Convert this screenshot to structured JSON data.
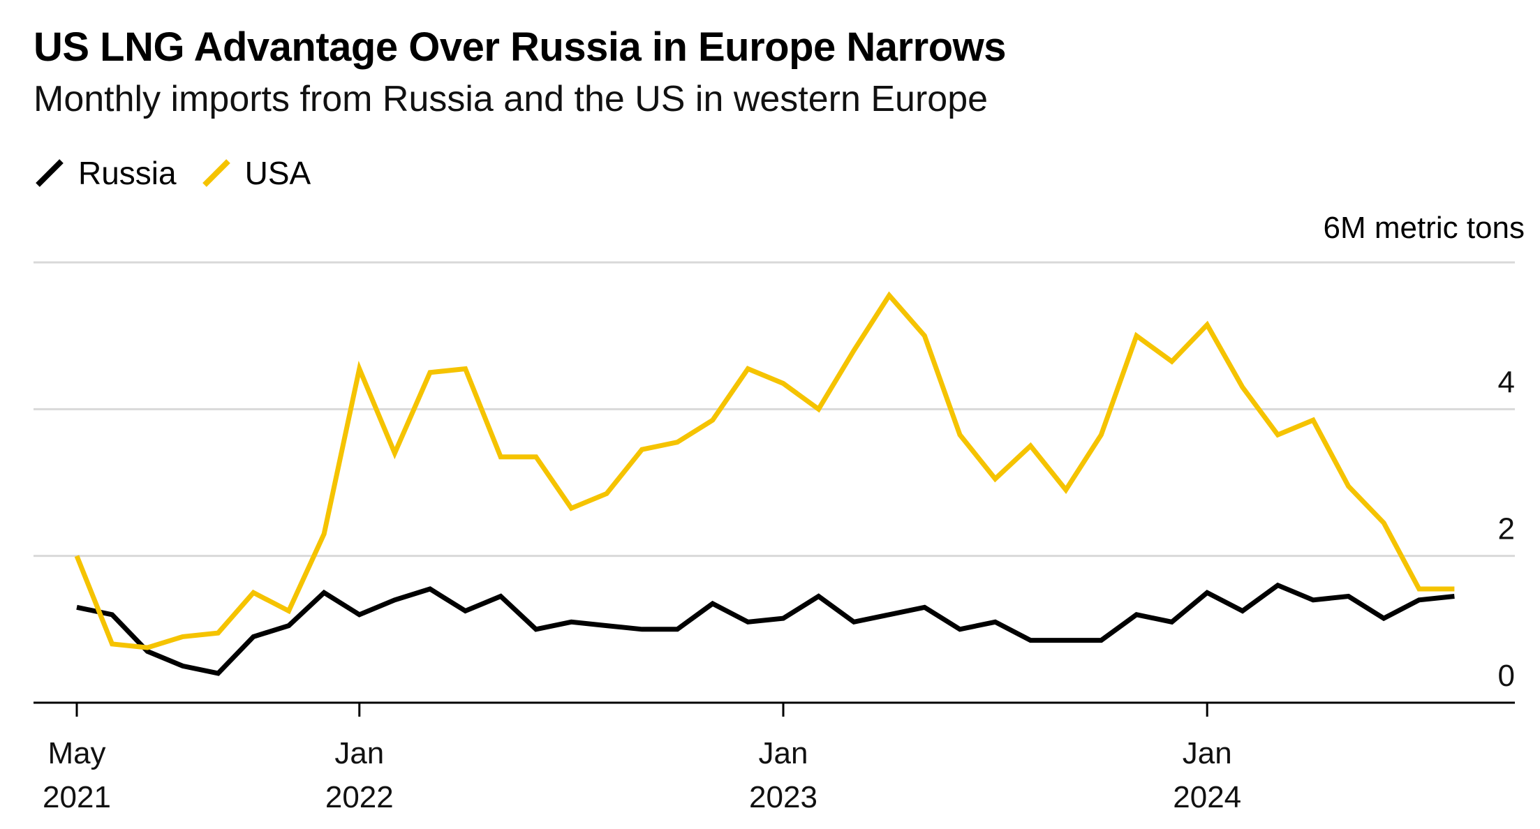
{
  "title": "US LNG Advantage Over Russia in Europe Narrows",
  "subtitle": "Monthly imports from Russia and the US in western Europe",
  "unit_label": "6M metric tons",
  "colors": {
    "russia": "#000000",
    "usa": "#F5C300",
    "grid": "#d9d9d9",
    "axis": "#000000"
  },
  "chart_data": {
    "type": "line",
    "title": "US LNG Advantage Over Russia in Europe Narrows",
    "subtitle": "Monthly imports from Russia and the US in western Europe",
    "ylabel": "6M metric tons",
    "ylim": [
      0,
      6
    ],
    "yticks": [
      0,
      2,
      4
    ],
    "y_tick_labels": [
      "0",
      "2",
      "4"
    ],
    "grid": true,
    "legend_position": "top-left",
    "x": [
      "2021-05",
      "2021-06",
      "2021-07",
      "2021-08",
      "2021-09",
      "2021-10",
      "2021-11",
      "2021-12",
      "2022-01",
      "2022-02",
      "2022-03",
      "2022-04",
      "2022-05",
      "2022-06",
      "2022-07",
      "2022-08",
      "2022-09",
      "2022-10",
      "2022-11",
      "2022-12",
      "2023-01",
      "2023-02",
      "2023-03",
      "2023-04",
      "2023-05",
      "2023-06",
      "2023-07",
      "2023-08",
      "2023-09",
      "2023-10",
      "2023-11",
      "2023-12",
      "2024-01",
      "2024-02",
      "2024-03",
      "2024-04",
      "2024-05",
      "2024-06",
      "2024-07",
      "2024-08"
    ],
    "x_ticks": [
      {
        "x": "2021-05",
        "line1": "May",
        "line2": "2021"
      },
      {
        "x": "2022-01",
        "line1": "Jan",
        "line2": "2022"
      },
      {
        "x": "2023-01",
        "line1": "Jan",
        "line2": "2023"
      },
      {
        "x": "2024-01",
        "line1": "Jan",
        "line2": "2024"
      }
    ],
    "series": [
      {
        "name": "Russia",
        "color": "#000000",
        "values": [
          1.3,
          1.2,
          0.7,
          0.5,
          0.4,
          0.9,
          1.05,
          1.5,
          1.2,
          1.4,
          1.55,
          1.25,
          1.45,
          1.0,
          1.1,
          1.05,
          1.0,
          1.0,
          1.35,
          1.1,
          1.15,
          1.45,
          1.1,
          1.2,
          1.3,
          1.0,
          1.1,
          0.85,
          0.85,
          0.85,
          1.2,
          1.1,
          1.5,
          1.25,
          1.6,
          1.4,
          1.45,
          1.15,
          1.4,
          1.45
        ]
      },
      {
        "name": "USA",
        "color": "#F5C300",
        "values": [
          2.0,
          0.8,
          0.75,
          0.9,
          0.95,
          1.5,
          1.25,
          2.3,
          4.55,
          3.4,
          4.5,
          4.55,
          3.35,
          3.35,
          2.65,
          2.85,
          3.45,
          3.55,
          3.85,
          4.55,
          4.35,
          4.0,
          4.8,
          5.55,
          5.0,
          3.65,
          3.05,
          3.5,
          2.9,
          3.65,
          5.0,
          4.65,
          5.15,
          4.3,
          3.65,
          3.85,
          2.95,
          2.45,
          1.55,
          1.55
        ]
      }
    ]
  }
}
